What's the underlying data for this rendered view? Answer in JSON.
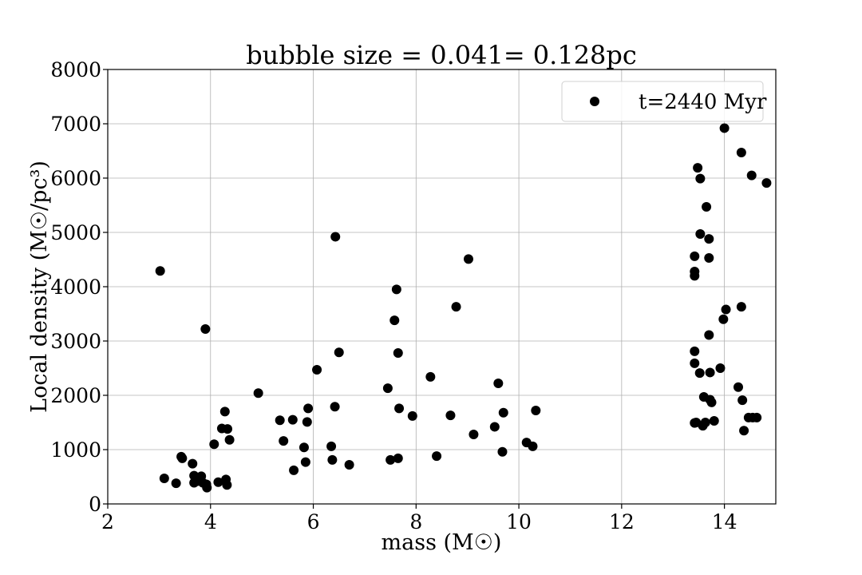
{
  "chart_data": {
    "type": "scatter",
    "title": "bubble size = 0.041= 0.128pc",
    "xlabel": "mass (M☉)",
    "ylabel": "Local density (M☉/pc³)",
    "xlim": [
      2,
      15
    ],
    "ylim": [
      0,
      8000
    ],
    "xticks": [
      2,
      4,
      6,
      8,
      10,
      12,
      14
    ],
    "yticks": [
      0,
      1000,
      2000,
      3000,
      4000,
      5000,
      6000,
      7000,
      8000
    ],
    "grid": true,
    "legend_position": "top-right",
    "marker_color": "#000000",
    "series": [
      {
        "name": "t=2440 Myr",
        "points": [
          [
            3.02,
            4290
          ],
          [
            3.1,
            470
          ],
          [
            3.33,
            380
          ],
          [
            3.43,
            870
          ],
          [
            3.45,
            840
          ],
          [
            3.65,
            740
          ],
          [
            3.68,
            520
          ],
          [
            3.68,
            390
          ],
          [
            3.75,
            420
          ],
          [
            3.82,
            510
          ],
          [
            3.85,
            390
          ],
          [
            3.9,
            3220
          ],
          [
            3.92,
            360
          ],
          [
            3.93,
            300
          ],
          [
            4.07,
            1100
          ],
          [
            4.15,
            400
          ],
          [
            4.22,
            1390
          ],
          [
            4.28,
            1700
          ],
          [
            4.3,
            450
          ],
          [
            4.32,
            350
          ],
          [
            4.33,
            1380
          ],
          [
            4.37,
            1180
          ],
          [
            4.93,
            2040
          ],
          [
            5.35,
            1540
          ],
          [
            5.42,
            1160
          ],
          [
            5.6,
            1550
          ],
          [
            5.62,
            620
          ],
          [
            5.82,
            1040
          ],
          [
            5.85,
            770
          ],
          [
            5.88,
            1510
          ],
          [
            5.9,
            1760
          ],
          [
            6.07,
            2470
          ],
          [
            6.35,
            1060
          ],
          [
            6.37,
            810
          ],
          [
            6.42,
            1790
          ],
          [
            6.43,
            4920
          ],
          [
            6.5,
            2790
          ],
          [
            6.7,
            720
          ],
          [
            7.45,
            2130
          ],
          [
            7.5,
            810
          ],
          [
            7.58,
            3380
          ],
          [
            7.62,
            3950
          ],
          [
            7.65,
            840
          ],
          [
            7.65,
            2780
          ],
          [
            7.67,
            1760
          ],
          [
            7.93,
            1620
          ],
          [
            8.28,
            2340
          ],
          [
            8.4,
            880
          ],
          [
            8.67,
            1630
          ],
          [
            8.78,
            3630
          ],
          [
            9.02,
            4510
          ],
          [
            9.12,
            1280
          ],
          [
            9.53,
            1420
          ],
          [
            9.6,
            2220
          ],
          [
            9.68,
            960
          ],
          [
            9.7,
            1680
          ],
          [
            10.15,
            1130
          ],
          [
            10.27,
            1060
          ],
          [
            10.33,
            1720
          ],
          [
            13.42,
            4560
          ],
          [
            13.42,
            4280
          ],
          [
            13.42,
            4200
          ],
          [
            13.42,
            2810
          ],
          [
            13.42,
            2590
          ],
          [
            13.42,
            1490
          ],
          [
            13.45,
            1500
          ],
          [
            13.48,
            6190
          ],
          [
            13.52,
            2410
          ],
          [
            13.53,
            5990
          ],
          [
            13.53,
            4970
          ],
          [
            13.58,
            1440
          ],
          [
            13.6,
            1970
          ],
          [
            13.63,
            1500
          ],
          [
            13.65,
            5470
          ],
          [
            13.7,
            4880
          ],
          [
            13.7,
            4530
          ],
          [
            13.7,
            3110
          ],
          [
            13.72,
            1920
          ],
          [
            13.72,
            2420
          ],
          [
            13.75,
            1870
          ],
          [
            13.8,
            1530
          ],
          [
            13.92,
            2500
          ],
          [
            13.98,
            3400
          ],
          [
            14.0,
            6920
          ],
          [
            14.03,
            3580
          ],
          [
            14.27,
            2150
          ],
          [
            14.33,
            6470
          ],
          [
            14.33,
            3630
          ],
          [
            14.35,
            1910
          ],
          [
            14.38,
            1350
          ],
          [
            14.47,
            1590
          ],
          [
            14.53,
            6050
          ],
          [
            14.55,
            1590
          ],
          [
            14.63,
            1590
          ],
          [
            14.82,
            5910
          ]
        ]
      }
    ]
  }
}
